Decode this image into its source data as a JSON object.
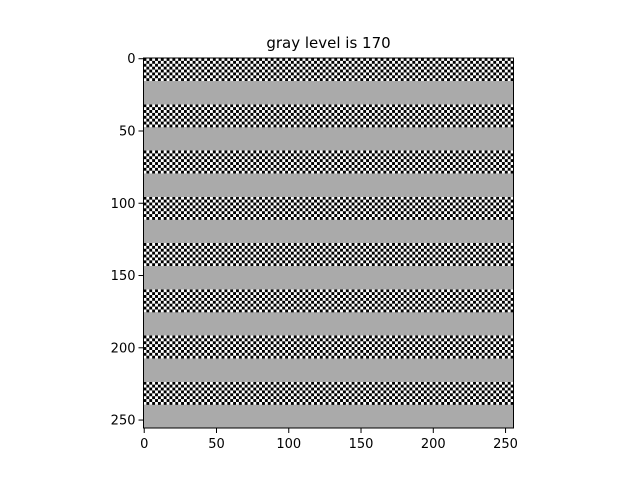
{
  "chart_data": {
    "type": "heatmap",
    "title": "gray level is 170",
    "xlabel": "",
    "ylabel": "",
    "image_size": [
      256,
      256
    ],
    "xlim": [
      0,
      256
    ],
    "ylim": [
      256,
      0
    ],
    "x_ticks": [
      0,
      50,
      100,
      150,
      200,
      250
    ],
    "y_ticks": [
      0,
      50,
      100,
      150,
      200,
      250
    ],
    "x_tick_labels": [
      "0",
      "50",
      "100",
      "150",
      "200",
      "250"
    ],
    "y_tick_labels": [
      "0",
      "50",
      "100",
      "150",
      "200",
      "250"
    ],
    "gray_level": 170,
    "band_height": 16,
    "checker_cell_size": 2,
    "pattern": [
      "checkerboard",
      "gray",
      "checkerboard",
      "gray",
      "checkerboard",
      "gray",
      "checkerboard",
      "gray",
      "checkerboard",
      "gray",
      "checkerboard",
      "gray",
      "checkerboard",
      "gray",
      "checkerboard",
      "gray"
    ],
    "colors": {
      "gray": "#aaaaaa",
      "checker_dark": "#000000",
      "checker_light": "#ffffff"
    },
    "grid": false,
    "legend": "none"
  }
}
